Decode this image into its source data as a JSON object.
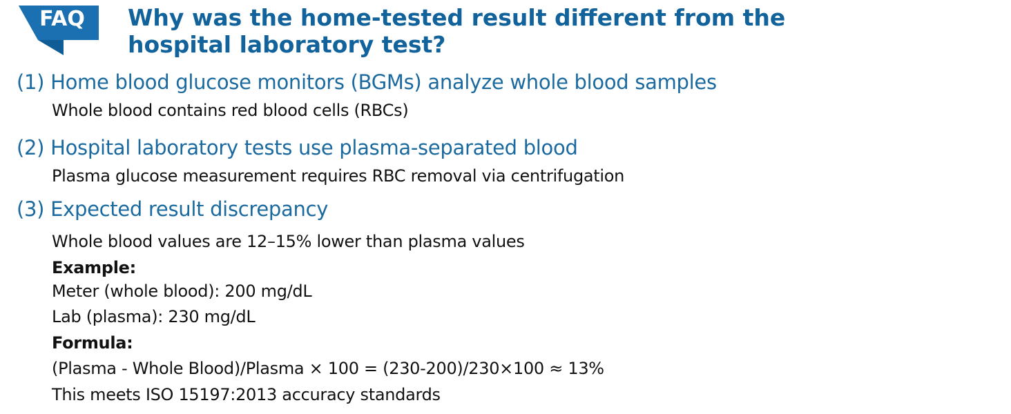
{
  "badge": "FAQ",
  "title": "Why was the home-tested result different from the hospital laboratory test?",
  "items": [
    {
      "heading": "(1) Home blood glucose monitors (BGMs) analyze whole blood samples",
      "lines": [
        "Whole blood contains red blood cells (RBCs)"
      ]
    },
    {
      "heading": "(2) Hospital laboratory tests use plasma-separated blood",
      "lines": [
        "Plasma glucose measurement requires RBC removal via centrifugation"
      ]
    },
    {
      "heading": "(3) Expected result discrepancy",
      "lines": [
        "Whole blood values are 12–15% lower than plasma values"
      ],
      "example": {
        "label": "Example:",
        "lines": [
          "Meter (whole blood): 200 mg/dL",
          "Lab (plasma): 230 mg/dL"
        ]
      },
      "formula": {
        "label": "Formula:",
        "lines": [
          "(Plasma - Whole Blood)/Plasma × 100 = (230-200)/230×100 ≈ 13%",
          "This meets ISO 15197:2013 accuracy standards"
        ]
      }
    }
  ]
}
